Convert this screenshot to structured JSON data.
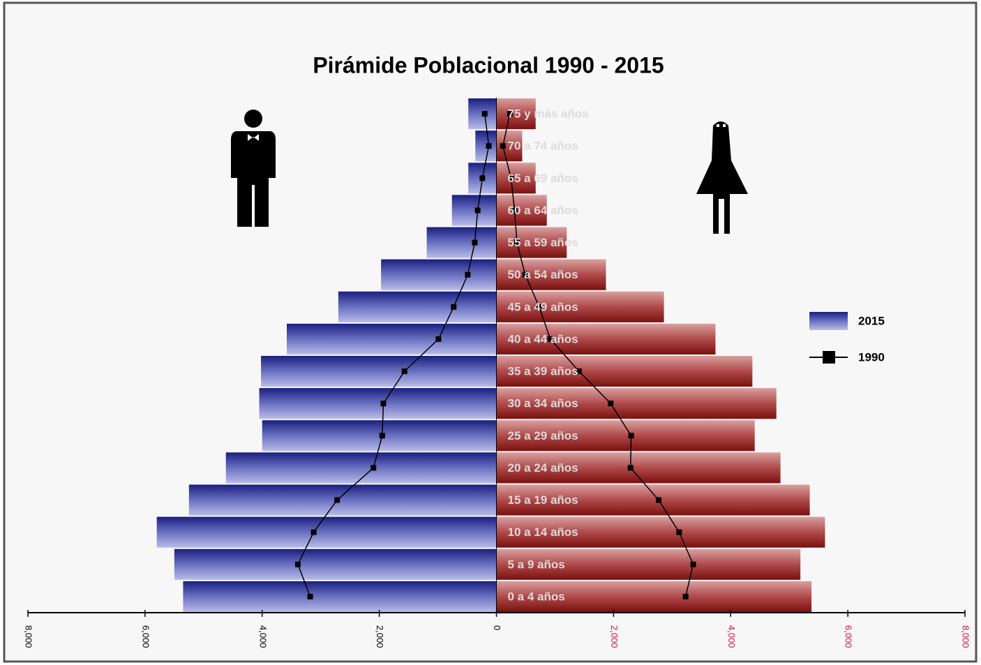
{
  "chart_data": {
    "type": "pyramid",
    "title": "Pirámide Poblacional 1990 - 2015",
    "categories": [
      "0 a 4 años",
      "5 a 9 años",
      "10 a 14 años",
      "15 a 19 años",
      "20 a 24 años",
      "25 a 29 años",
      "30 a 34 años",
      "35 a 39 años",
      "40 a 44 años",
      "45 a 49 años",
      "50 a 54 años",
      "55 a 59 años",
      "60 a 64 años",
      "65 a 69 años",
      "70 a 74 años",
      "75 y más años"
    ],
    "series": [
      {
        "name": "2015",
        "kind": "bar",
        "colors": [
          "#3a3f9a",
          "#9a2b2b"
        ],
        "values": [
          [
            -5350,
            -5500,
            -5800,
            -5250,
            -4620,
            -4000,
            -4050,
            -4020,
            -3580,
            -2700,
            -1970,
            -1190,
            -760,
            -480,
            -360,
            -480
          ],
          [
            5380,
            5190,
            5610,
            5350,
            4850,
            4410,
            4780,
            4370,
            3740,
            2860,
            1870,
            1200,
            860,
            670,
            440,
            670
          ]
        ]
      },
      {
        "name": "1990",
        "kind": "line",
        "colors": [
          "#000000",
          "#000000"
        ],
        "values": [
          [
            -3180,
            -3390,
            -3120,
            -2720,
            -2100,
            -1950,
            -1930,
            -1570,
            -990,
            -730,
            -490,
            -370,
            -320,
            -240,
            -130,
            -200
          ],
          [
            3230,
            3360,
            3120,
            2770,
            2290,
            2300,
            1950,
            1410,
            920,
            730,
            490,
            350,
            310,
            250,
            110,
            230
          ]
        ]
      }
    ],
    "xlim": [
      -8000,
      8000
    ],
    "xticks": [
      {
        "value": -8000,
        "label": "8,000"
      },
      {
        "value": -6000,
        "label": "6,000"
      },
      {
        "value": -4000,
        "label": "4,000"
      },
      {
        "value": -2000,
        "label": "2,000"
      },
      0,
      {
        "value": 2000,
        "label": "2,000"
      },
      {
        "value": 4000,
        "label": "4,000"
      },
      {
        "value": 6000,
        "label": "6,000"
      },
      {
        "value": 8000,
        "label": "8,000"
      }
    ],
    "tick_colors": [
      "#000000",
      "#d2143c"
    ],
    "legend": "right"
  }
}
